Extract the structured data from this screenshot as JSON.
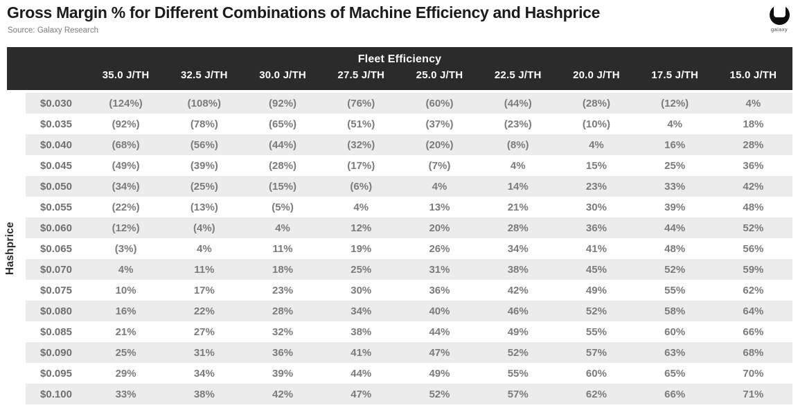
{
  "page": {
    "title": "Gross Margin % for Different Combinations of Machine Efficiency and Hashprice",
    "source": "Source: Galaxy Research",
    "logo_text": "galaxy"
  },
  "chart_data": {
    "type": "table",
    "title": "Gross Margin % for Different Combinations of Machine Efficiency and Hashprice",
    "source": "Source: Galaxy Research",
    "column_group_label": "Fleet Efficiency",
    "row_group_label": "Hashprice",
    "columns": [
      "35.0 J/TH",
      "32.5 J/TH",
      "30.0 J/TH",
      "27.5 J/TH",
      "25.0 J/TH",
      "22.5 J/TH",
      "20.0 J/TH",
      "17.5 J/TH",
      "15.0 J/TH"
    ],
    "rows": [
      {
        "label": "$0.030",
        "values": [
          "(124%)",
          "(108%)",
          "(92%)",
          "(76%)",
          "(60%)",
          "(44%)",
          "(28%)",
          "(12%)",
          "4%"
        ]
      },
      {
        "label": "$0.035",
        "values": [
          "(92%)",
          "(78%)",
          "(65%)",
          "(51%)",
          "(37%)",
          "(23%)",
          "(10%)",
          "4%",
          "18%"
        ]
      },
      {
        "label": "$0.040",
        "values": [
          "(68%)",
          "(56%)",
          "(44%)",
          "(32%)",
          "(20%)",
          "(8%)",
          "4%",
          "16%",
          "28%"
        ]
      },
      {
        "label": "$0.045",
        "values": [
          "(49%)",
          "(39%)",
          "(28%)",
          "(17%)",
          "(7%)",
          "4%",
          "15%",
          "25%",
          "36%"
        ]
      },
      {
        "label": "$0.050",
        "values": [
          "(34%)",
          "(25%)",
          "(15%)",
          "(6%)",
          "4%",
          "14%",
          "23%",
          "33%",
          "42%"
        ]
      },
      {
        "label": "$0.055",
        "values": [
          "(22%)",
          "(13%)",
          "(5%)",
          "4%",
          "13%",
          "21%",
          "30%",
          "39%",
          "48%"
        ]
      },
      {
        "label": "$0.060",
        "values": [
          "(12%)",
          "(4%)",
          "4%",
          "12%",
          "20%",
          "28%",
          "36%",
          "44%",
          "52%"
        ]
      },
      {
        "label": "$0.065",
        "values": [
          "(3%)",
          "4%",
          "11%",
          "19%",
          "26%",
          "34%",
          "41%",
          "48%",
          "56%"
        ]
      },
      {
        "label": "$0.070",
        "values": [
          "4%",
          "11%",
          "18%",
          "25%",
          "31%",
          "38%",
          "45%",
          "52%",
          "59%"
        ]
      },
      {
        "label": "$0.075",
        "values": [
          "10%",
          "17%",
          "23%",
          "30%",
          "36%",
          "42%",
          "49%",
          "55%",
          "62%"
        ]
      },
      {
        "label": "$0.080",
        "values": [
          "16%",
          "22%",
          "28%",
          "34%",
          "40%",
          "46%",
          "52%",
          "58%",
          "64%"
        ]
      },
      {
        "label": "$0.085",
        "values": [
          "21%",
          "27%",
          "32%",
          "38%",
          "44%",
          "49%",
          "55%",
          "60%",
          "66%"
        ]
      },
      {
        "label": "$0.090",
        "values": [
          "25%",
          "31%",
          "36%",
          "41%",
          "47%",
          "52%",
          "57%",
          "63%",
          "68%"
        ]
      },
      {
        "label": "$0.095",
        "values": [
          "29%",
          "34%",
          "39%",
          "44%",
          "49%",
          "55%",
          "60%",
          "65%",
          "70%"
        ]
      },
      {
        "label": "$0.100",
        "values": [
          "33%",
          "38%",
          "42%",
          "47%",
          "52%",
          "57%",
          "62%",
          "66%",
          "71%"
        ]
      }
    ]
  },
  "colors": {
    "header_bg": "#2b2b2b",
    "header_text": "#ffffff",
    "row_stripe": "#ececec",
    "cell_text": "#7b7b7b",
    "title_text": "#1b1b1b",
    "source_text": "#7d7d7d",
    "logo_black": "#0d0d0d"
  }
}
